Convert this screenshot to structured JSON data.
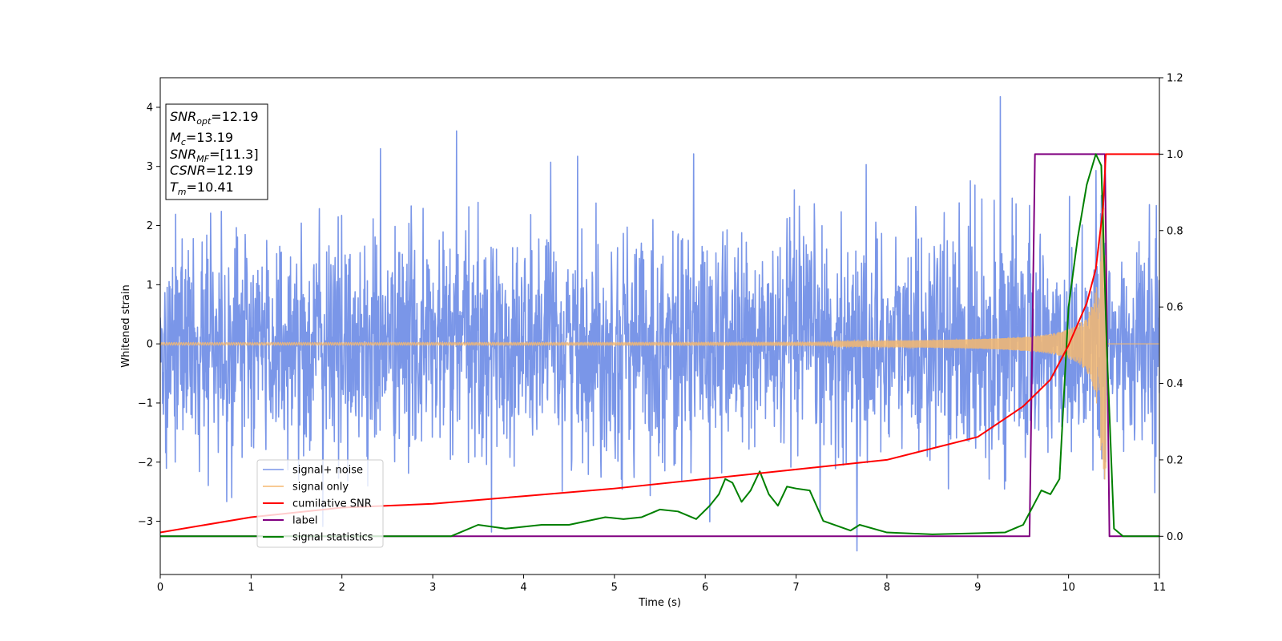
{
  "chart_data": {
    "type": "line",
    "title": "",
    "xlabel": "Time (s)",
    "ylabel": "Whitened strain",
    "xlim": [
      0,
      11
    ],
    "ylim_left": [
      -3.9,
      4.5
    ],
    "ylim_right": [
      -0.1,
      1.2
    ],
    "x_ticks": [
      "0",
      "1",
      "2",
      "3",
      "4",
      "5",
      "6",
      "7",
      "8",
      "9",
      "10",
      "11"
    ],
    "y_ticks_left": [
      "−3",
      "−2",
      "−1",
      "0",
      "1",
      "2",
      "3",
      "4"
    ],
    "y_ticks_right": [
      "0.0",
      "0.2",
      "0.4",
      "0.6",
      "0.8",
      "1.0",
      "1.2"
    ],
    "grid": false,
    "legend_position": "lower-left",
    "annotation": [
      {
        "base": "SNR",
        "sub": "opt",
        "value": "=12.19"
      },
      {
        "base": "M",
        "sub": "c",
        "value": "=13.19"
      },
      {
        "base": "SNR",
        "sub": "MF",
        "value": "=[11.3]"
      },
      {
        "base": "CSNR",
        "sub": "",
        "value": "=12.19"
      },
      {
        "base": "T",
        "sub": "m",
        "value": "=10.41"
      }
    ],
    "series": [
      {
        "name": "signal+ noise",
        "color": "#7a96e8",
        "axis": "left",
        "description": "noisy whitened strain, roughly between -3.5 and 4.2",
        "peaks": [
          [
            3.26,
            3.6
          ],
          [
            9.25,
            4.18
          ],
          [
            7.67,
            -3.5
          ]
        ]
      },
      {
        "name": "signal only",
        "color": "#f5b870",
        "axis": "left",
        "description": "chirp, amplitude growing from ~0.02 at t=0 to ~2.3 at t=10.41, zero afterwards",
        "chirp_end_time": 10.41
      },
      {
        "name": "cumilative SNR",
        "color": "#ff0000",
        "axis": "right",
        "points": [
          [
            0.0,
            0.01
          ],
          [
            1.0,
            0.05
          ],
          [
            2.0,
            0.075
          ],
          [
            3.0,
            0.085
          ],
          [
            4.0,
            0.105
          ],
          [
            5.0,
            0.125
          ],
          [
            6.0,
            0.15
          ],
          [
            7.0,
            0.175
          ],
          [
            8.0,
            0.2
          ],
          [
            8.5,
            0.23
          ],
          [
            9.0,
            0.26
          ],
          [
            9.5,
            0.34
          ],
          [
            9.8,
            0.41
          ],
          [
            10.0,
            0.5
          ],
          [
            10.2,
            0.61
          ],
          [
            10.3,
            0.7
          ],
          [
            10.38,
            0.86
          ],
          [
            10.41,
            1.0
          ],
          [
            10.45,
            1.0
          ],
          [
            11.0,
            1.0
          ]
        ]
      },
      {
        "name": "label",
        "color": "#800080",
        "axis": "right",
        "points": [
          [
            0.0,
            0.0
          ],
          [
            9.57,
            0.0
          ],
          [
            9.63,
            1.0
          ],
          [
            10.4,
            1.0
          ],
          [
            10.45,
            0.0
          ],
          [
            11.0,
            0.0
          ]
        ]
      },
      {
        "name": "signal statistics",
        "color": "#008000",
        "axis": "right",
        "points": [
          [
            0.0,
            0.0
          ],
          [
            2.5,
            0.0
          ],
          [
            3.2,
            0.0
          ],
          [
            3.3,
            0.01
          ],
          [
            3.5,
            0.03
          ],
          [
            3.8,
            0.02
          ],
          [
            4.2,
            0.03
          ],
          [
            4.5,
            0.03
          ],
          [
            4.7,
            0.04
          ],
          [
            4.9,
            0.05
          ],
          [
            5.1,
            0.045
          ],
          [
            5.3,
            0.05
          ],
          [
            5.5,
            0.07
          ],
          [
            5.7,
            0.065
          ],
          [
            5.9,
            0.045
          ],
          [
            6.05,
            0.08
          ],
          [
            6.15,
            0.11
          ],
          [
            6.22,
            0.15
          ],
          [
            6.3,
            0.14
          ],
          [
            6.4,
            0.09
          ],
          [
            6.5,
            0.12
          ],
          [
            6.6,
            0.17
          ],
          [
            6.7,
            0.11
          ],
          [
            6.8,
            0.08
          ],
          [
            6.9,
            0.13
          ],
          [
            7.0,
            0.125
          ],
          [
            7.15,
            0.12
          ],
          [
            7.3,
            0.04
          ],
          [
            7.6,
            0.015
          ],
          [
            7.7,
            0.03
          ],
          [
            8.0,
            0.01
          ],
          [
            8.5,
            0.005
          ],
          [
            9.0,
            0.008
          ],
          [
            9.3,
            0.01
          ],
          [
            9.5,
            0.03
          ],
          [
            9.7,
            0.12
          ],
          [
            9.8,
            0.11
          ],
          [
            9.9,
            0.15
          ],
          [
            10.0,
            0.6
          ],
          [
            10.1,
            0.78
          ],
          [
            10.2,
            0.92
          ],
          [
            10.3,
            1.0
          ],
          [
            10.36,
            0.97
          ],
          [
            10.42,
            0.5
          ],
          [
            10.5,
            0.02
          ],
          [
            10.6,
            0.0
          ],
          [
            11.0,
            0.0
          ]
        ]
      }
    ]
  }
}
